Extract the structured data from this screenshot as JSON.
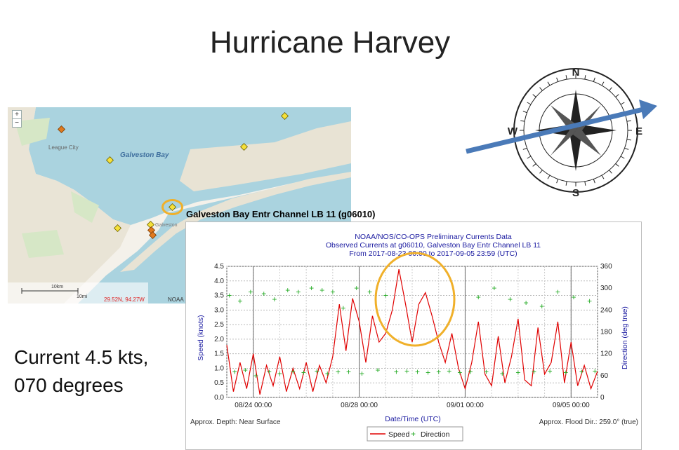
{
  "slide": {
    "title": "Hurricane Harvey",
    "note_line1": "Current 4.5 kts,",
    "note_line2": "070 degrees"
  },
  "map": {
    "zoom_in": "+",
    "zoom_out": "−",
    "label_league_city": "League City",
    "label_bay": "Galveston Bay",
    "label_galveston": "Galveston",
    "scale_km": "10km",
    "scale_mi": "10mi",
    "coords": "29.52N, 94.27W",
    "attribution": "NOAA",
    "station_marker_color": "#f5e03a",
    "highlight_color": "#f0b02a"
  },
  "station": {
    "title": "Galveston Bay Entr Channel LB 11 (g06010)"
  },
  "chart_meta": {
    "header1": "NOAA/NOS/CO-OPS Preliminary Currents Data",
    "header2": "Observed Currents at g06010, Galveston Bay Entr Channel LB 11",
    "header3": "From 2017-08-23 00:00 to 2017-09-05 23:59 (UTC)",
    "depth": "Approx. Depth: Near Surface",
    "flood_dir": "Approx. Flood Dir.: 259.0° (true)",
    "legend_speed": "Speed",
    "legend_direction": "Direction",
    "speed_color": "#e00000",
    "direction_color": "#22aa22",
    "axis_text_color": "#1a1aa0"
  },
  "chart_data": {
    "type": "line",
    "title": "NOAA/NOS/CO-OPS Preliminary Currents Data",
    "xlabel": "Date/Time (UTC)",
    "ylabel": "Speed (knots)",
    "y2label": "Direction (deg true)",
    "ylim": [
      0,
      4.5
    ],
    "y2lim": [
      0,
      360
    ],
    "yticks": [
      "0.0",
      "0.5",
      "1.0",
      "1.5",
      "2.0",
      "2.5",
      "3.0",
      "3.5",
      "4.0",
      "4.5"
    ],
    "y2ticks": [
      "0",
      "60",
      "120",
      "180",
      "240",
      "300",
      "360"
    ],
    "xticks": [
      "08/24 00:00",
      "08/28 00:00",
      "09/01 00:00",
      "09/05 00:00"
    ],
    "xtick_days": [
      1,
      5,
      9,
      13
    ],
    "x_range_days": [
      0,
      14
    ],
    "grid": true,
    "legend": "bottom",
    "series": [
      {
        "name": "Speed",
        "x": [
          0.0,
          0.25,
          0.5,
          0.75,
          1.0,
          1.25,
          1.5,
          1.75,
          2.0,
          2.25,
          2.5,
          2.75,
          3.0,
          3.25,
          3.5,
          3.75,
          4.0,
          4.25,
          4.5,
          4.75,
          5.0,
          5.25,
          5.5,
          5.75,
          6.0,
          6.25,
          6.5,
          6.75,
          7.0,
          7.25,
          7.5,
          7.75,
          8.0,
          8.25,
          8.5,
          8.75,
          9.0,
          9.25,
          9.5,
          9.75,
          10.0,
          10.25,
          10.5,
          10.75,
          11.0,
          11.25,
          11.5,
          11.75,
          12.0,
          12.25,
          12.5,
          12.75,
          13.0,
          13.25,
          13.5,
          13.75,
          14.0
        ],
        "values": [
          1.8,
          0.2,
          1.2,
          0.3,
          1.5,
          0.1,
          1.1,
          0.4,
          1.4,
          0.2,
          1.0,
          0.3,
          1.2,
          0.2,
          1.1,
          0.5,
          1.4,
          3.2,
          1.6,
          3.4,
          2.6,
          1.2,
          2.8,
          1.9,
          2.2,
          3.0,
          4.4,
          3.2,
          1.9,
          3.2,
          3.6,
          2.8,
          1.9,
          1.2,
          2.2,
          1.0,
          0.3,
          1.2,
          2.6,
          0.8,
          0.4,
          2.1,
          0.5,
          1.4,
          2.7,
          0.6,
          0.4,
          2.4,
          0.8,
          1.2,
          2.6,
          0.5,
          1.9,
          0.4,
          1.1,
          0.3,
          0.9
        ]
      },
      {
        "name": "Direction",
        "x": [
          0.1,
          0.3,
          0.5,
          0.7,
          0.9,
          1.1,
          1.4,
          1.6,
          1.8,
          2.0,
          2.3,
          2.5,
          2.7,
          2.9,
          3.2,
          3.4,
          3.6,
          3.8,
          4.0,
          4.2,
          4.4,
          4.6,
          4.9,
          5.1,
          5.4,
          5.7,
          6.0,
          6.4,
          6.8,
          7.2,
          7.6,
          8.0,
          8.4,
          8.8,
          9.2,
          9.5,
          9.8,
          10.1,
          10.4,
          10.7,
          11.0,
          11.3,
          11.6,
          11.9,
          12.2,
          12.5,
          12.8,
          13.1,
          13.4,
          13.7,
          13.9
        ],
        "values": [
          280,
          70,
          265,
          75,
          290,
          60,
          285,
          70,
          270,
          65,
          295,
          70,
          290,
          68,
          300,
          72,
          295,
          65,
          290,
          70,
          245,
          70,
          300,
          65,
          290,
          75,
          280,
          70,
          72,
          70,
          68,
          70,
          72,
          68,
          70,
          275,
          70,
          300,
          65,
          270,
          68,
          260,
          70,
          250,
          72,
          290,
          68,
          275,
          70,
          265,
          72
        ]
      }
    ]
  }
}
